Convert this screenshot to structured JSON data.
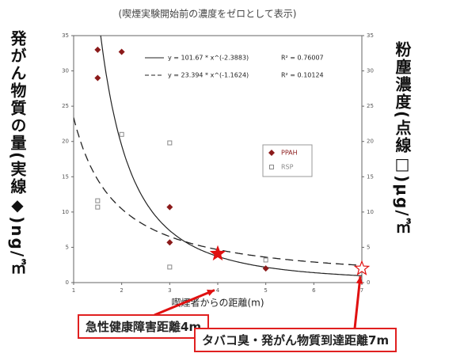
{
  "chart_data": {
    "type": "scatter",
    "title": "(喫煙実験開始前の濃度をゼロとして表示)",
    "y_label": "発がん物質の量(実線◆)ng/㎥",
    "y2_label": "粉塵濃度(点線□)μg/㎥",
    "x_label": "喫煙者からの距離(m)",
    "xlim": [
      1,
      7
    ],
    "xticks": [
      1,
      2,
      3,
      4,
      5,
      6,
      7
    ],
    "ylim": [
      0,
      35
    ],
    "yticks": [
      0,
      5,
      10,
      15,
      20,
      25,
      30,
      35
    ],
    "y2lim": [
      0,
      35
    ],
    "y2ticks": [
      0,
      5,
      10,
      15,
      20,
      25,
      30,
      35
    ],
    "series": [
      {
        "name": "PPAH",
        "color": "#8b1a1a",
        "marker": "diamond",
        "x": [
          1.5,
          1.5,
          2,
          3,
          3,
          5
        ],
        "values": [
          33,
          29,
          32.7,
          10.7,
          5.7,
          2
        ]
      },
      {
        "name": "RSP",
        "color": "#888888",
        "marker": "square",
        "axis": "y2",
        "x": [
          1.5,
          1.5,
          2,
          3,
          3,
          5
        ],
        "values": [
          11.6,
          10.7,
          21,
          19.8,
          2.2,
          3.2
        ]
      }
    ],
    "trendlines": [
      {
        "equation": "y = 101.67 * x^(-2.3883)",
        "r2": "R² = 0.76007",
        "a": 101.67,
        "b": -2.3883,
        "dash": false
      },
      {
        "equation": "y = 23.394 * x^(-1.1624)",
        "r2": "R² = 0.10124",
        "a": 23.394,
        "b": -1.1624,
        "dash": true
      }
    ],
    "markers": [
      {
        "x": 4,
        "y": 4.1,
        "filled": true
      },
      {
        "x": 7,
        "y": 2,
        "filled": false
      }
    ],
    "annotations": [
      "急性健康障害距離4m",
      "タバコ臭・発がん物質到達距離7m"
    ]
  }
}
